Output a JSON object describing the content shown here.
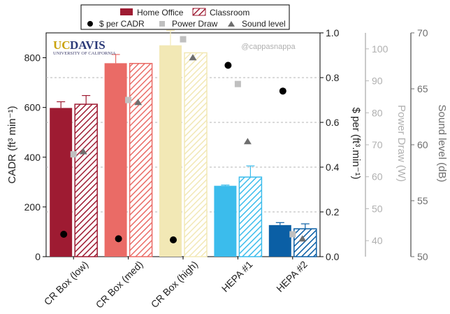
{
  "logo": {
    "uc": "UC",
    "davis": "DAVIS",
    "sub": "UNIVERSITY OF CALIFORNIA"
  },
  "watermark": "@cappasnappa",
  "legend": {
    "home_office": "Home Office",
    "classroom": "Classroom",
    "dollar_per_cadr": "$ per CADR",
    "power_draw": "Power Draw",
    "sound_level": "Sound level"
  },
  "chart_data": {
    "type": "bar",
    "categories": [
      "CR Box (low)",
      "CR Box (med)",
      "CR Box (high)",
      "HEPA #1",
      "HEPA #2"
    ],
    "colors": {
      "cr_low": "#9e1b32",
      "cr_med": "#ea6b66",
      "cr_high": "#f2e8b5",
      "hepa1": "#3bbcec",
      "hepa2": "#0b5fa5",
      "power": "#c0c0c0",
      "sound": "#6e6e6e",
      "dollar": "#000000"
    },
    "bar_series": [
      {
        "name": "Home Office",
        "values": [
          598,
          778,
          850,
          285,
          127
        ],
        "errors": [
          25,
          35,
          60,
          3,
          10
        ]
      },
      {
        "name": "Classroom",
        "values": [
          613,
          777,
          820,
          320,
          112
        ],
        "errors": [
          35,
          0,
          0,
          45,
          20
        ]
      }
    ],
    "dollar_per_cadr": {
      "name": "$ per CADR",
      "values": [
        0.1,
        0.08,
        0.075,
        0.855,
        0.74
      ]
    },
    "power_draw": {
      "name": "Power Draw",
      "values": [
        67,
        84,
        103,
        89,
        42
      ]
    },
    "sound_level": {
      "name": "Sound level",
      "values": [
        59.4,
        63.8,
        67.8,
        60.3,
        51.6
      ]
    },
    "axes": {
      "y_left": {
        "label": "CADR (ft³ min⁻¹)",
        "ylim": [
          0,
          900
        ],
        "ticks": [
          "0",
          "200",
          "400",
          "600",
          "800"
        ]
      },
      "y_right_dollar": {
        "label": "$ per (ft³.min⁻¹)",
        "ylim": [
          0,
          1.0
        ],
        "ticks": [
          "0.0",
          "0.2",
          "0.4",
          "0.6",
          "0.8",
          "1.0"
        ]
      },
      "y_right_power": {
        "label": "Power Draw (W)",
        "ylim": [
          35,
          105
        ],
        "ticks": [
          "40",
          "50",
          "60",
          "70",
          "80",
          "90",
          "100"
        ]
      },
      "y_right_sound": {
        "label": "Sound level (dB)",
        "ylim": [
          50,
          70
        ],
        "ticks": [
          "50",
          "55",
          "60",
          "65",
          "70"
        ]
      }
    },
    "grid": "horizontal dashed",
    "legend_position": "top"
  }
}
